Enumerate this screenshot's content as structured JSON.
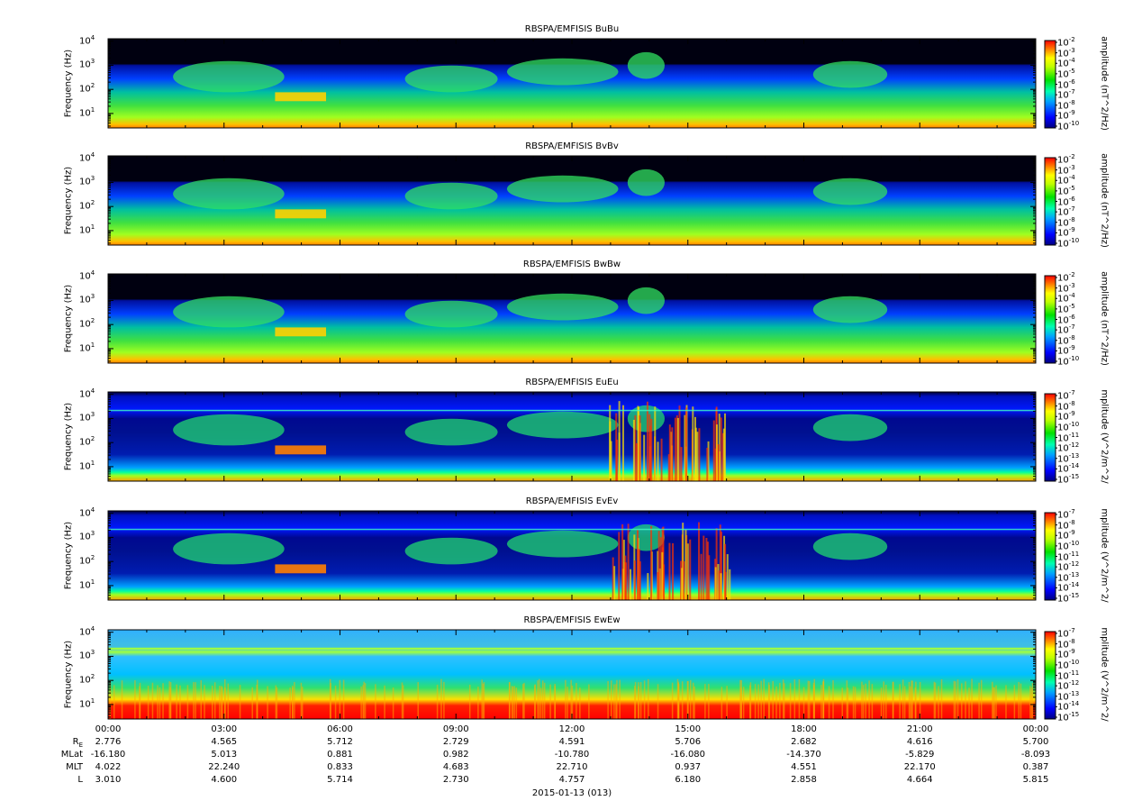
{
  "chart_data": {
    "type": "heatmap",
    "date_label": "2015-01-13 (013)",
    "x_tick_labels": [
      "00:00",
      "03:00",
      "06:00",
      "09:00",
      "12:00",
      "15:00",
      "18:00",
      "21:00",
      "00:00"
    ],
    "ephemeris": {
      "labels": [
        "R",
        "MLat",
        "MLT",
        "L"
      ],
      "R_subscript": "E",
      "rows": [
        [
          "2.776",
          "4.565",
          "5.712",
          "2.729",
          "4.591",
          "5.706",
          "2.682",
          "4.616",
          "5.700"
        ],
        [
          "-16.180",
          "5.013",
          "0.881",
          "0.982",
          "-10.780",
          "-16.080",
          "-14.370",
          "-5.829",
          "-8.093"
        ],
        [
          "4.022",
          "22.240",
          "0.833",
          "4.683",
          "22.710",
          "0.937",
          "4.551",
          "22.170",
          "0.387"
        ],
        [
          "3.010",
          "4.600",
          "5.714",
          "2.730",
          "4.757",
          "6.180",
          "2.858",
          "4.664",
          "5.815"
        ]
      ]
    },
    "panels": [
      {
        "title": "RBSPA/EMFISIS  BuBu",
        "ylabel": "Frequency (Hz)",
        "cblabel": "amplitude (nT^2/Hz)",
        "y_ticks": [
          "10",
          "10",
          "10",
          "10"
        ],
        "y_exp": [
          "1",
          "2",
          "3",
          "4"
        ],
        "cb_ticks": [
          "10",
          "10",
          "10",
          "10",
          "10",
          "10",
          "10",
          "10",
          "10"
        ],
        "cb_exp": [
          "-2",
          "-3",
          "-4",
          "-5",
          "-6",
          "-7",
          "-8",
          "-9",
          "-10"
        ],
        "kind": "B"
      },
      {
        "title": "RBSPA/EMFISIS  BvBv",
        "ylabel": "Frequency (Hz)",
        "cblabel": "amplitude (nT^2/Hz)",
        "y_ticks": [
          "10",
          "10",
          "10",
          "10"
        ],
        "y_exp": [
          "1",
          "2",
          "3",
          "4"
        ],
        "cb_ticks": [
          "10",
          "10",
          "10",
          "10",
          "10",
          "10",
          "10",
          "10",
          "10"
        ],
        "cb_exp": [
          "-2",
          "-3",
          "-4",
          "-5",
          "-6",
          "-7",
          "-8",
          "-9",
          "-10"
        ],
        "kind": "B"
      },
      {
        "title": "RBSPA/EMFISIS  BwBw",
        "ylabel": "Frequency (Hz)",
        "cblabel": "amplitude (nT^2/Hz)",
        "y_ticks": [
          "10",
          "10",
          "10",
          "10"
        ],
        "y_exp": [
          "1",
          "2",
          "3",
          "4"
        ],
        "cb_ticks": [
          "10",
          "10",
          "10",
          "10",
          "10",
          "10",
          "10",
          "10",
          "10"
        ],
        "cb_exp": [
          "-2",
          "-3",
          "-4",
          "-5",
          "-6",
          "-7",
          "-8",
          "-9",
          "-10"
        ],
        "kind": "B"
      },
      {
        "title": "RBSPA/EMFISIS  EuEu",
        "ylabel": "Frequency (Hz)",
        "cblabel": "mplitude (V^2/m^2/",
        "y_ticks": [
          "10",
          "10",
          "10",
          "10"
        ],
        "y_exp": [
          "1",
          "2",
          "3",
          "4"
        ],
        "cb_ticks": [
          "10",
          "10",
          "10",
          "10",
          "10",
          "10",
          "10",
          "10",
          "10"
        ],
        "cb_exp": [
          "-7",
          "-8",
          "-9",
          "-10",
          "-11",
          "-12",
          "-13",
          "-14",
          "-15"
        ],
        "kind": "E"
      },
      {
        "title": "RBSPA/EMFISIS  EvEv",
        "ylabel": "Frequency (Hz)",
        "cblabel": "mplitude (V^2/m^2/",
        "y_ticks": [
          "10",
          "10",
          "10",
          "10"
        ],
        "y_exp": [
          "1",
          "2",
          "3",
          "4"
        ],
        "cb_ticks": [
          "10",
          "10",
          "10",
          "10",
          "10",
          "10",
          "10",
          "10",
          "10"
        ],
        "cb_exp": [
          "-7",
          "-8",
          "-9",
          "-10",
          "-11",
          "-12",
          "-13",
          "-14",
          "-15"
        ],
        "kind": "E"
      },
      {
        "title": "RBSPA/EMFISIS  EwEw",
        "ylabel": "Frequency (Hz)",
        "cblabel": "mplitude (V^2/m^2/",
        "y_ticks": [
          "10",
          "10",
          "10",
          "10"
        ],
        "y_exp": [
          "1",
          "2",
          "3",
          "4"
        ],
        "cb_ticks": [
          "10",
          "10",
          "10",
          "10",
          "10",
          "10",
          "10",
          "10",
          "10"
        ],
        "cb_exp": [
          "-7",
          "-8",
          "-9",
          "-10",
          "-11",
          "-12",
          "-13",
          "-14",
          "-15"
        ],
        "kind": "Ew"
      }
    ]
  }
}
